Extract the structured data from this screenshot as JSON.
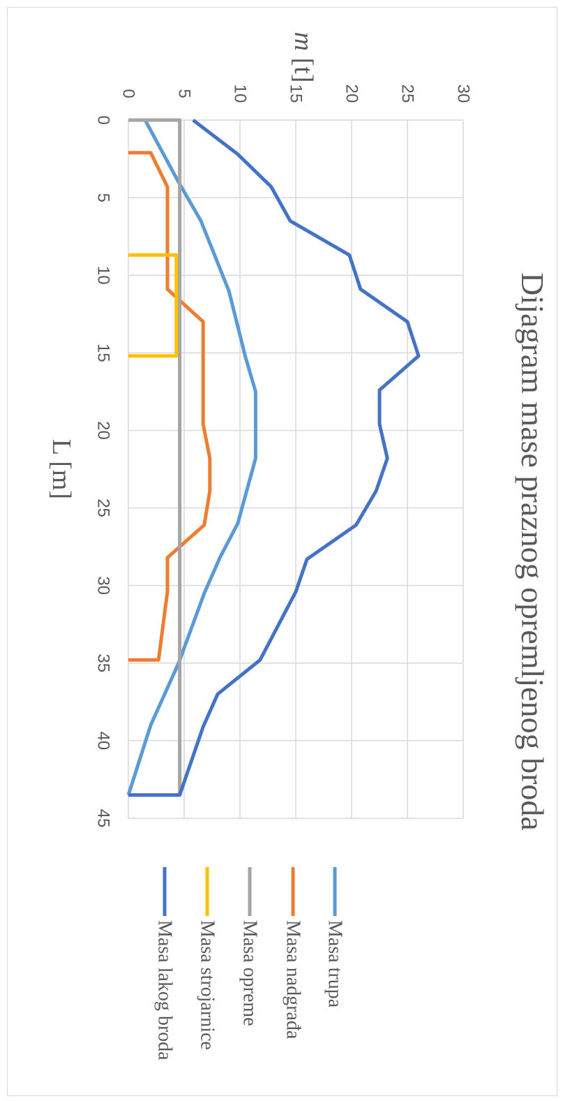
{
  "chart_data": {
    "type": "line",
    "title": "Dijagram mase praznog opremljenog broda",
    "xlabel": "L [m]",
    "ylabel_italic": "m",
    "ylabel_unit": " [t]",
    "xlim": [
      0,
      45
    ],
    "ylim": [
      0,
      30
    ],
    "x_ticks": [
      0,
      5,
      10,
      15,
      20,
      25,
      30,
      35,
      40,
      45
    ],
    "y_ticks": [
      0,
      5,
      10,
      15,
      20,
      25,
      30
    ],
    "grid": true,
    "legend_position": "right",
    "series": [
      {
        "name": "Masa trupa",
        "color": "#5b9bd5",
        "points": [
          [
            0,
            1.5
          ],
          [
            4,
            4.5
          ],
          [
            6.5,
            6.5
          ],
          [
            11,
            9
          ],
          [
            15.3,
            10.5
          ],
          [
            17.5,
            11.4
          ],
          [
            21.8,
            11.4
          ],
          [
            26,
            9.8
          ],
          [
            28.2,
            8.2
          ],
          [
            30.5,
            6.8
          ],
          [
            35,
            4.5
          ],
          [
            39,
            2
          ],
          [
            43.5,
            0
          ]
        ]
      },
      {
        "name": "Masa nadgrađa",
        "color": "#ed7d31",
        "points": [
          [
            2.1,
            0
          ],
          [
            2.1,
            2
          ],
          [
            4.3,
            3.5
          ],
          [
            10.9,
            3.5
          ],
          [
            13,
            6.7
          ],
          [
            19.6,
            6.7
          ],
          [
            21.8,
            7.3
          ],
          [
            23.9,
            7.3
          ],
          [
            26.1,
            6.8
          ],
          [
            28.2,
            3.5
          ],
          [
            30.4,
            3.5
          ],
          [
            34.8,
            2.7
          ],
          [
            34.8,
            0
          ]
        ]
      },
      {
        "name": "Masa opreme",
        "color": "#a5a5a5",
        "points": [
          [
            0,
            0
          ],
          [
            0,
            4.6
          ],
          [
            43.5,
            4.6
          ],
          [
            43.5,
            0
          ]
        ]
      },
      {
        "name": "Masa strojarnice",
        "color": "#ffc000",
        "points": [
          [
            8.7,
            0
          ],
          [
            8.7,
            4.3
          ],
          [
            15.2,
            4.3
          ],
          [
            15.2,
            0
          ]
        ]
      },
      {
        "name": "Masa lakog broda",
        "color": "#4472c4",
        "points": [
          [
            0,
            5.8
          ],
          [
            2.2,
            9.8
          ],
          [
            4.3,
            12.8
          ],
          [
            6.5,
            14.5
          ],
          [
            8.7,
            19.8
          ],
          [
            10.9,
            20.8
          ],
          [
            13,
            25
          ],
          [
            15.2,
            26
          ],
          [
            17.4,
            22.5
          ],
          [
            19.6,
            22.5
          ],
          [
            21.8,
            23.2
          ],
          [
            23.9,
            22.2
          ],
          [
            26.1,
            20.4
          ],
          [
            28.3,
            16
          ],
          [
            30.4,
            15
          ],
          [
            34.8,
            11.8
          ],
          [
            37,
            8
          ],
          [
            39.1,
            6.7
          ],
          [
            43.5,
            4.6
          ],
          [
            43.5,
            0
          ]
        ]
      }
    ]
  }
}
